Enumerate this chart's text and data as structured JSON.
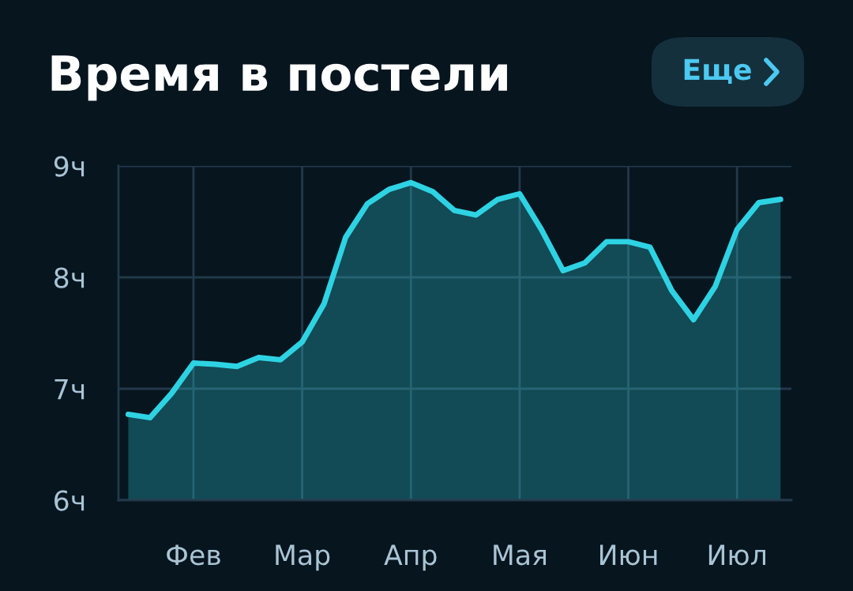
{
  "chart_data": {
    "type": "area",
    "title": "Время в постели",
    "annotations": [
      "Еще"
    ],
    "categories": [
      null,
      null,
      null,
      "Фев",
      null,
      null,
      null,
      null,
      "Мар",
      null,
      null,
      null,
      null,
      "Апр",
      null,
      null,
      null,
      null,
      "Мая",
      null,
      null,
      null,
      null,
      "Июн",
      null,
      null,
      null,
      null,
      "Июл",
      null,
      null
    ],
    "series": [
      {
        "color": "#2ed3e3",
        "values": [
          6.77,
          6.74,
          6.96,
          7.23,
          7.22,
          7.2,
          7.28,
          7.26,
          7.42,
          7.76,
          8.36,
          8.66,
          8.79,
          8.85,
          8.77,
          8.6,
          8.56,
          8.7,
          8.75,
          8.43,
          8.06,
          8.13,
          8.32,
          8.32,
          8.27,
          7.88,
          7.62,
          7.92,
          8.43,
          8.67,
          8.7
        ]
      }
    ],
    "ylim": [
      6,
      9
    ],
    "yticks": [
      {
        "value": 6,
        "label": "6ч"
      },
      {
        "value": 7,
        "label": "7ч"
      },
      {
        "value": 8,
        "label": "8ч"
      },
      {
        "value": 9,
        "label": "9ч"
      }
    ],
    "grid": true,
    "line_style": "solid"
  }
}
